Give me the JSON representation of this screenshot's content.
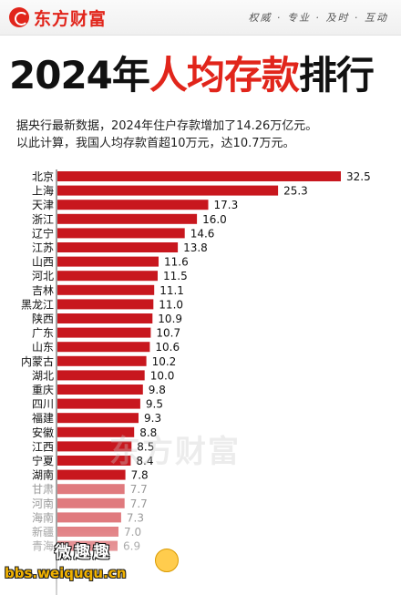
{
  "header": {
    "logo_text": "东方财富",
    "slogan": "权威 · 专业 · 及时 · 互动"
  },
  "headline": {
    "year_part": "2024年",
    "red_part": "人均存款",
    "tail_part": "排行"
  },
  "subtitle": {
    "line1": "据央行最新数据，2024年住户存款增加了14.26万亿元。",
    "line2": "以此计算，我国人均存款首超10万元，达10.7万元。"
  },
  "watermark_text": "东方财富",
  "stamp": {
    "title": "微趣趣",
    "url": "bbs.weiququ.cn"
  },
  "colors": {
    "bar": "#c8171e",
    "bar_faded": "#e07a7e",
    "accent": "#e1251b"
  },
  "chart_data": {
    "type": "bar",
    "orientation": "horizontal",
    "categories": [
      "北京",
      "上海",
      "天津",
      "浙江",
      "辽宁",
      "江苏",
      "山西",
      "河北",
      "吉林",
      "黑龙江",
      "陕西",
      "广东",
      "山东",
      "内蒙古",
      "湖北",
      "重庆",
      "四川",
      "福建",
      "安徽",
      "江西",
      "宁夏",
      "湖南",
      "甘肃",
      "河南",
      "海南",
      "新疆",
      "青海"
    ],
    "values": [
      32.5,
      25.3,
      17.3,
      16.0,
      14.6,
      13.8,
      11.6,
      11.5,
      11.1,
      11.0,
      10.9,
      10.7,
      10.6,
      10.2,
      10.0,
      9.8,
      9.5,
      9.3,
      8.8,
      8.5,
      8.4,
      7.8,
      7.7,
      7.7,
      7.3,
      7.0,
      6.9
    ],
    "labels": [
      "32.5",
      "25.3",
      "17.3",
      "16.0",
      "14.6",
      "13.8",
      "11.6",
      "11.5",
      "11.1",
      "11.0",
      "10.9",
      "10.7",
      "10.6",
      "10.2",
      "10.0",
      "9.8",
      "9.5",
      "9.3",
      "8.8",
      "8.5",
      "8.4",
      "7.8",
      "7.7",
      "7.7",
      "7.3",
      "7.0",
      "6.9"
    ],
    "faded_from_index": 22,
    "xlim": [
      0,
      32.5
    ],
    "grid": false,
    "legend": "none"
  }
}
